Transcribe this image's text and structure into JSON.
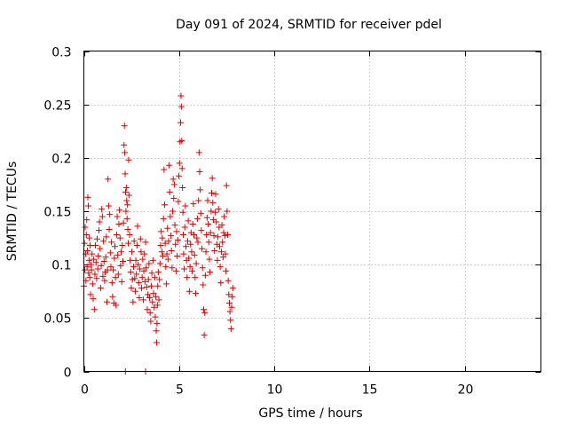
{
  "chart_data": {
    "type": "scatter",
    "title": "Day 091 of 2024, SRMTID for receiver pdel",
    "xlabel": "GPS time / hours",
    "ylabel": "SRMTID / TECUs",
    "xlim": [
      0,
      24
    ],
    "ylim": [
      0,
      0.3
    ],
    "xticks": [
      0,
      5,
      10,
      15,
      20
    ],
    "yticks": [
      0,
      0.05,
      0.1,
      0.15,
      0.2,
      0.25,
      0.3
    ],
    "xtick_labels": [
      "0",
      "5",
      "10",
      "15",
      "20"
    ],
    "ytick_labels": [
      "0",
      "0.05",
      "0.1",
      "0.15",
      "0.2",
      "0.25",
      "0.3"
    ],
    "grid": true,
    "marker": "+",
    "color": "#e00000",
    "series": [
      {
        "name": "SRMTID",
        "points": [
          [
            0.0,
            0.08
          ],
          [
            0.03,
            0.12
          ],
          [
            0.05,
            0.095
          ],
          [
            0.07,
            0.135
          ],
          [
            0.09,
            0.11
          ],
          [
            0.11,
            0.085
          ],
          [
            0.13,
            0.128
          ],
          [
            0.15,
            0.142
          ],
          [
            0.17,
            0.098
          ],
          [
            0.19,
            0.113
          ],
          [
            0.21,
            0.163
          ],
          [
            0.23,
            0.155
          ],
          [
            0.25,
            0.092
          ],
          [
            0.27,
            0.104
          ],
          [
            0.29,
            0.125
          ],
          [
            0.31,
            0.088
          ],
          [
            0.33,
            0.118
          ],
          [
            0.35,
            0.072
          ],
          [
            0.37,
            0.1
          ],
          [
            0.4,
            0.095
          ],
          [
            0.43,
            0.11
          ],
          [
            0.46,
            0.082
          ],
          [
            0.49,
            0.068
          ],
          [
            0.52,
            0.105
          ],
          [
            0.55,
            0.058
          ],
          [
            0.58,
            0.091
          ],
          [
            0.61,
            0.118
          ],
          [
            0.64,
            0.102
          ],
          [
            0.67,
            0.087
          ],
          [
            0.7,
            0.124
          ],
          [
            0.73,
            0.096
          ],
          [
            0.76,
            0.108
          ],
          [
            0.79,
            0.132
          ],
          [
            0.82,
            0.14
          ],
          [
            0.85,
            0.115
          ],
          [
            0.88,
            0.078
          ],
          [
            0.91,
            0.099
          ],
          [
            0.94,
            0.152
          ],
          [
            0.97,
            0.145
          ],
          [
            1.0,
            0.089
          ],
          [
            1.03,
            0.122
          ],
          [
            1.06,
            0.103
          ],
          [
            1.09,
            0.085
          ],
          [
            1.12,
            0.093
          ],
          [
            1.15,
            0.107
          ],
          [
            1.18,
            0.126
          ],
          [
            1.21,
            0.065
          ],
          [
            1.24,
            0.095
          ],
          [
            1.27,
            0.18
          ],
          [
            1.3,
            0.155
          ],
          [
            1.33,
            0.133
          ],
          [
            1.36,
            0.147
          ],
          [
            1.39,
            0.111
          ],
          [
            1.42,
            0.098
          ],
          [
            1.45,
            0.121
          ],
          [
            1.48,
            0.083
          ],
          [
            1.51,
            0.07
          ],
          [
            1.54,
            0.095
          ],
          [
            1.57,
            0.064
          ],
          [
            1.6,
            0.106
          ],
          [
            1.63,
            0.117
          ],
          [
            1.66,
            0.088
          ],
          [
            1.69,
            0.062
          ],
          [
            1.72,
            0.128
          ],
          [
            1.75,
            0.145
          ],
          [
            1.78,
            0.109
          ],
          [
            1.81,
            0.091
          ],
          [
            1.84,
            0.138
          ],
          [
            1.87,
            0.151
          ],
          [
            1.9,
            0.125
          ],
          [
            1.93,
            0.099
          ],
          [
            1.96,
            0.112
          ],
          [
            1.99,
            0.084
          ],
          [
            2.02,
            0.118
          ],
          [
            2.05,
            0.103
          ],
          [
            2.08,
            0.139
          ],
          [
            2.11,
            0.212
          ],
          [
            2.13,
            0.23
          ],
          [
            2.15,
            0.205
          ],
          [
            2.17,
            0.185
          ],
          [
            2.19,
            0.168
          ],
          [
            2.21,
            0.15
          ],
          [
            2.23,
            0.172
          ],
          [
            2.25,
            0.16
          ],
          [
            2.27,
            0.143
          ],
          [
            2.29,
            0.156
          ],
          [
            2.31,
            0.133
          ],
          [
            2.33,
            0.12
          ],
          [
            2.35,
            0.198
          ],
          [
            2.37,
            0.165
          ],
          [
            2.4,
            0.128
          ],
          [
            2.43,
            0.104
          ],
          [
            2.46,
            0.093
          ],
          [
            2.49,
            0.078
          ],
          [
            2.52,
            0.112
          ],
          [
            2.55,
            0.086
          ],
          [
            2.58,
            0.065
          ],
          [
            2.61,
            0.098
          ],
          [
            2.64,
            0.122
          ],
          [
            2.67,
            0.087
          ],
          [
            2.7,
            0.075
          ],
          [
            2.73,
            0.104
          ],
          [
            2.76,
            0.091
          ],
          [
            2.79,
            0.118
          ],
          [
            2.82,
            0.136
          ],
          [
            2.85,
            0.1
          ],
          [
            2.88,
            0.083
          ],
          [
            2.91,
            0.069
          ],
          [
            2.94,
            0.096
          ],
          [
            2.97,
            0.124
          ],
          [
            3.0,
            0.112
          ],
          [
            3.03,
            0.078
          ],
          [
            3.06,
            0.088
          ],
          [
            3.09,
            0.105
          ],
          [
            3.12,
            0.067
          ],
          [
            3.15,
            0.094
          ],
          [
            3.18,
            0.11
          ],
          [
            3.21,
            0.084
          ],
          [
            3.24,
            0.121
          ],
          [
            3.27,
            0.097
          ],
          [
            3.3,
            0.079
          ],
          [
            3.33,
            0.058
          ],
          [
            3.36,
            0.072
          ],
          [
            3.39,
            0.086
          ],
          [
            3.42,
            0.101
          ],
          [
            3.45,
            0.069
          ],
          [
            3.48,
            0.055
          ],
          [
            3.51,
            0.047
          ],
          [
            3.54,
            0.08
          ],
          [
            3.57,
            0.092
          ],
          [
            3.6,
            0.065
          ],
          [
            3.63,
            0.104
          ],
          [
            3.66,
            0.073
          ],
          [
            3.69,
            0.06
          ],
          [
            3.72,
            0.088
          ],
          [
            3.75,
            0.051
          ],
          [
            3.78,
            0.07
          ],
          [
            3.8,
            0.038
          ],
          [
            3.82,
            0.027
          ],
          [
            3.84,
            0.045
          ],
          [
            3.86,
            0.062
          ],
          [
            3.88,
            0.08
          ],
          [
            3.91,
            0.093
          ],
          [
            3.94,
            0.067
          ],
          [
            3.97,
            0.086
          ],
          [
            4.0,
            0.101
          ],
          [
            4.03,
            0.118
          ],
          [
            4.06,
            0.131
          ],
          [
            4.09,
            0.112
          ],
          [
            4.12,
            0.125
          ],
          [
            4.15,
            0.108
          ],
          [
            4.18,
            0.143
          ],
          [
            4.21,
            0.189
          ],
          [
            4.24,
            0.156
          ],
          [
            4.27,
            0.12
          ],
          [
            4.3,
            0.098
          ],
          [
            4.33,
            0.082
          ],
          [
            4.36,
            0.11
          ],
          [
            4.39,
            0.134
          ],
          [
            4.42,
            0.105
          ],
          [
            4.45,
            0.122
          ],
          [
            4.48,
            0.193
          ],
          [
            4.51,
            0.168
          ],
          [
            4.54,
            0.145
          ],
          [
            4.57,
            0.127
          ],
          [
            4.6,
            0.113
          ],
          [
            4.63,
            0.097
          ],
          [
            4.66,
            0.15
          ],
          [
            4.69,
            0.18
          ],
          [
            4.72,
            0.162
          ],
          [
            4.75,
            0.175
          ],
          [
            4.78,
            0.137
          ],
          [
            4.81,
            0.119
          ],
          [
            4.84,
            0.094
          ],
          [
            4.87,
            0.131
          ],
          [
            4.9,
            0.108
          ],
          [
            4.93,
            0.123
          ],
          [
            4.96,
            0.159
          ],
          [
            4.99,
            0.183
          ],
          [
            5.02,
            0.195
          ],
          [
            5.05,
            0.215
          ],
          [
            5.08,
            0.233
          ],
          [
            5.1,
            0.258
          ],
          [
            5.12,
            0.248
          ],
          [
            5.14,
            0.216
          ],
          [
            5.16,
            0.19
          ],
          [
            5.18,
            0.172
          ],
          [
            5.2,
            0.149
          ],
          [
            5.22,
            0.128
          ],
          [
            5.24,
            0.11
          ],
          [
            5.27,
            0.096
          ],
          [
            5.3,
            0.135
          ],
          [
            5.33,
            0.155
          ],
          [
            5.36,
            0.117
          ],
          [
            5.39,
            0.104
          ],
          [
            5.42,
            0.088
          ],
          [
            5.45,
            0.122
          ],
          [
            5.48,
            0.141
          ],
          [
            5.51,
            0.106
          ],
          [
            5.54,
            0.075
          ],
          [
            5.57,
            0.098
          ],
          [
            5.6,
            0.119
          ],
          [
            5.63,
            0.13
          ],
          [
            5.66,
            0.112
          ],
          [
            5.69,
            0.094
          ],
          [
            5.72,
            0.138
          ],
          [
            5.75,
            0.157
          ],
          [
            5.78,
            0.128
          ],
          [
            5.81,
            0.109
          ],
          [
            5.84,
            0.088
          ],
          [
            5.87,
            0.073
          ],
          [
            5.9,
            0.101
          ],
          [
            5.93,
            0.125
          ],
          [
            5.96,
            0.143
          ],
          [
            5.99,
            0.121
          ],
          [
            6.02,
            0.16
          ],
          [
            6.05,
            0.205
          ],
          [
            6.08,
            0.187
          ],
          [
            6.11,
            0.17
          ],
          [
            6.14,
            0.148
          ],
          [
            6.17,
            0.132
          ],
          [
            6.2,
            0.115
          ],
          [
            6.23,
            0.097
          ],
          [
            6.26,
            0.081
          ],
          [
            6.29,
            0.058
          ],
          [
            6.32,
            0.034
          ],
          [
            6.35,
            0.055
          ],
          [
            6.38,
            0.09
          ],
          [
            6.41,
            0.112
          ],
          [
            6.44,
            0.128
          ],
          [
            6.47,
            0.144
          ],
          [
            6.5,
            0.16
          ],
          [
            6.53,
            0.138
          ],
          [
            6.56,
            0.121
          ],
          [
            6.59,
            0.105
          ],
          [
            6.62,
            0.093
          ],
          [
            6.65,
            0.13
          ],
          [
            6.68,
            0.15
          ],
          [
            6.71,
            0.167
          ],
          [
            6.74,
            0.181
          ],
          [
            6.77,
            0.158
          ],
          [
            6.8,
            0.142
          ],
          [
            6.83,
            0.127
          ],
          [
            6.86,
            0.113
          ],
          [
            6.89,
            0.149
          ],
          [
            6.92,
            0.166
          ],
          [
            6.95,
            0.14
          ],
          [
            6.98,
            0.119
          ],
          [
            7.01,
            0.104
          ],
          [
            7.04,
            0.126
          ],
          [
            7.07,
            0.152
          ],
          [
            7.1,
            0.135
          ],
          [
            7.13,
            0.117
          ],
          [
            7.16,
            0.098
          ],
          [
            7.19,
            0.083
          ],
          [
            7.22,
            0.112
          ],
          [
            7.25,
            0.137
          ],
          [
            7.28,
            0.121
          ],
          [
            7.31,
            0.107
          ],
          [
            7.34,
            0.13
          ],
          [
            7.37,
            0.145
          ],
          [
            7.4,
            0.127
          ],
          [
            7.43,
            0.11
          ],
          [
            7.46,
            0.094
          ],
          [
            7.49,
            0.174
          ],
          [
            7.52,
            0.15
          ],
          [
            7.55,
            0.128
          ],
          [
            7.58,
            0.085
          ],
          [
            7.61,
            0.072
          ],
          [
            7.64,
            0.064
          ],
          [
            7.67,
            0.056
          ],
          [
            7.7,
            0.048
          ],
          [
            7.73,
            0.04
          ],
          [
            7.76,
            0.06
          ],
          [
            7.79,
            0.07
          ],
          [
            7.82,
            0.078
          ],
          [
            2.18,
            0.0
          ],
          [
            3.24,
            0.0
          ]
        ]
      }
    ]
  }
}
